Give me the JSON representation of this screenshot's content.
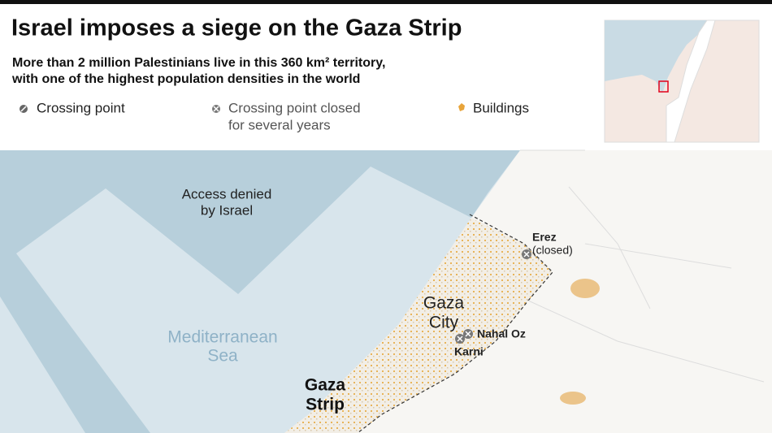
{
  "header": {
    "title": "Israel imposes a siege on the Gaza Strip",
    "subtitle": [
      "More than 2 million Palestinians live in this 360 km² territory,",
      "with one of the highest population densities in the world"
    ]
  },
  "legend": [
    {
      "label": "Crossing point"
    },
    {
      "lines": [
        "Crossing point closed",
        "for several years"
      ]
    },
    {
      "label": "Buildings"
    }
  ],
  "map_labels": {
    "access_denied": [
      "Access denied",
      "by Israel"
    ],
    "sea": [
      "Mediterranean",
      "Sea"
    ],
    "city": [
      "Gaza",
      "City"
    ],
    "strip": [
      "Gaza",
      "Strip"
    ],
    "erez": [
      "Erez",
      "(closed)"
    ],
    "nahal_oz": "Nahal Oz",
    "karni": "Karni"
  }
}
